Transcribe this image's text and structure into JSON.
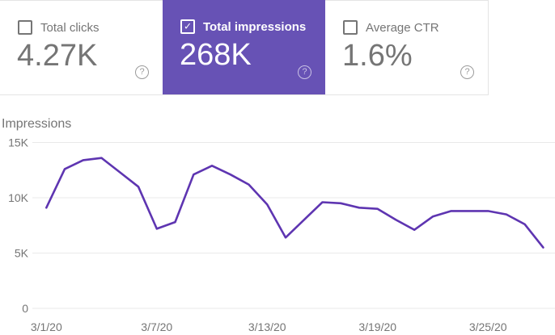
{
  "cards": [
    {
      "label": "Total clicks",
      "value": "4.27K",
      "checked": false,
      "selected": false
    },
    {
      "label": "Total impressions",
      "value": "268K",
      "checked": true,
      "selected": true,
      "accent_color": "#6752b5"
    },
    {
      "label": "Average CTR",
      "value": "1.6%",
      "checked": false,
      "selected": false
    }
  ],
  "icons": {
    "help_glyph": "?",
    "check_glyph": "✓"
  },
  "colors": {
    "selected_card_purple": "#6752b5",
    "line_purple": "#5e35b1",
    "grid_gray": "#e9e9e9",
    "muted_text": "#757575"
  },
  "chart_data": {
    "type": "line",
    "title": "Impressions",
    "x": [
      "3/1/20",
      "3/2/20",
      "3/3/20",
      "3/4/20",
      "3/5/20",
      "3/6/20",
      "3/7/20",
      "3/8/20",
      "3/9/20",
      "3/10/20",
      "3/11/20",
      "3/12/20",
      "3/13/20",
      "3/14/20",
      "3/15/20",
      "3/16/20",
      "3/17/20",
      "3/18/20",
      "3/19/20",
      "3/20/20",
      "3/21/20",
      "3/22/20",
      "3/23/20",
      "3/24/20",
      "3/25/20",
      "3/26/20",
      "3/27/20",
      "3/28/20"
    ],
    "values": [
      9100,
      12600,
      13400,
      13600,
      12300,
      11000,
      7200,
      7800,
      12100,
      12900,
      12100,
      11200,
      9400,
      6400,
      8000,
      9600,
      9500,
      9100,
      9000,
      8000,
      7100,
      8300,
      8800,
      8800,
      8800,
      8500,
      7600,
      5500
    ],
    "ylabel": "Impressions",
    "ylim": [
      0,
      15000
    ],
    "yticks": [
      {
        "value": 0,
        "label": "0"
      },
      {
        "value": 5000,
        "label": "5K"
      },
      {
        "value": 10000,
        "label": "10K"
      },
      {
        "value": 15000,
        "label": "15K"
      }
    ],
    "xticks": [
      {
        "index": 0,
        "label": "3/1/20"
      },
      {
        "index": 6,
        "label": "3/7/20"
      },
      {
        "index": 12,
        "label": "3/13/20"
      },
      {
        "index": 18,
        "label": "3/19/20"
      },
      {
        "index": 24,
        "label": "3/25/20"
      }
    ],
    "grid": "horizontal-only",
    "legend": "none",
    "line_color": "#5e35b1",
    "grid_color": "#e9e9e9",
    "tick_text_color": "#757575"
  }
}
